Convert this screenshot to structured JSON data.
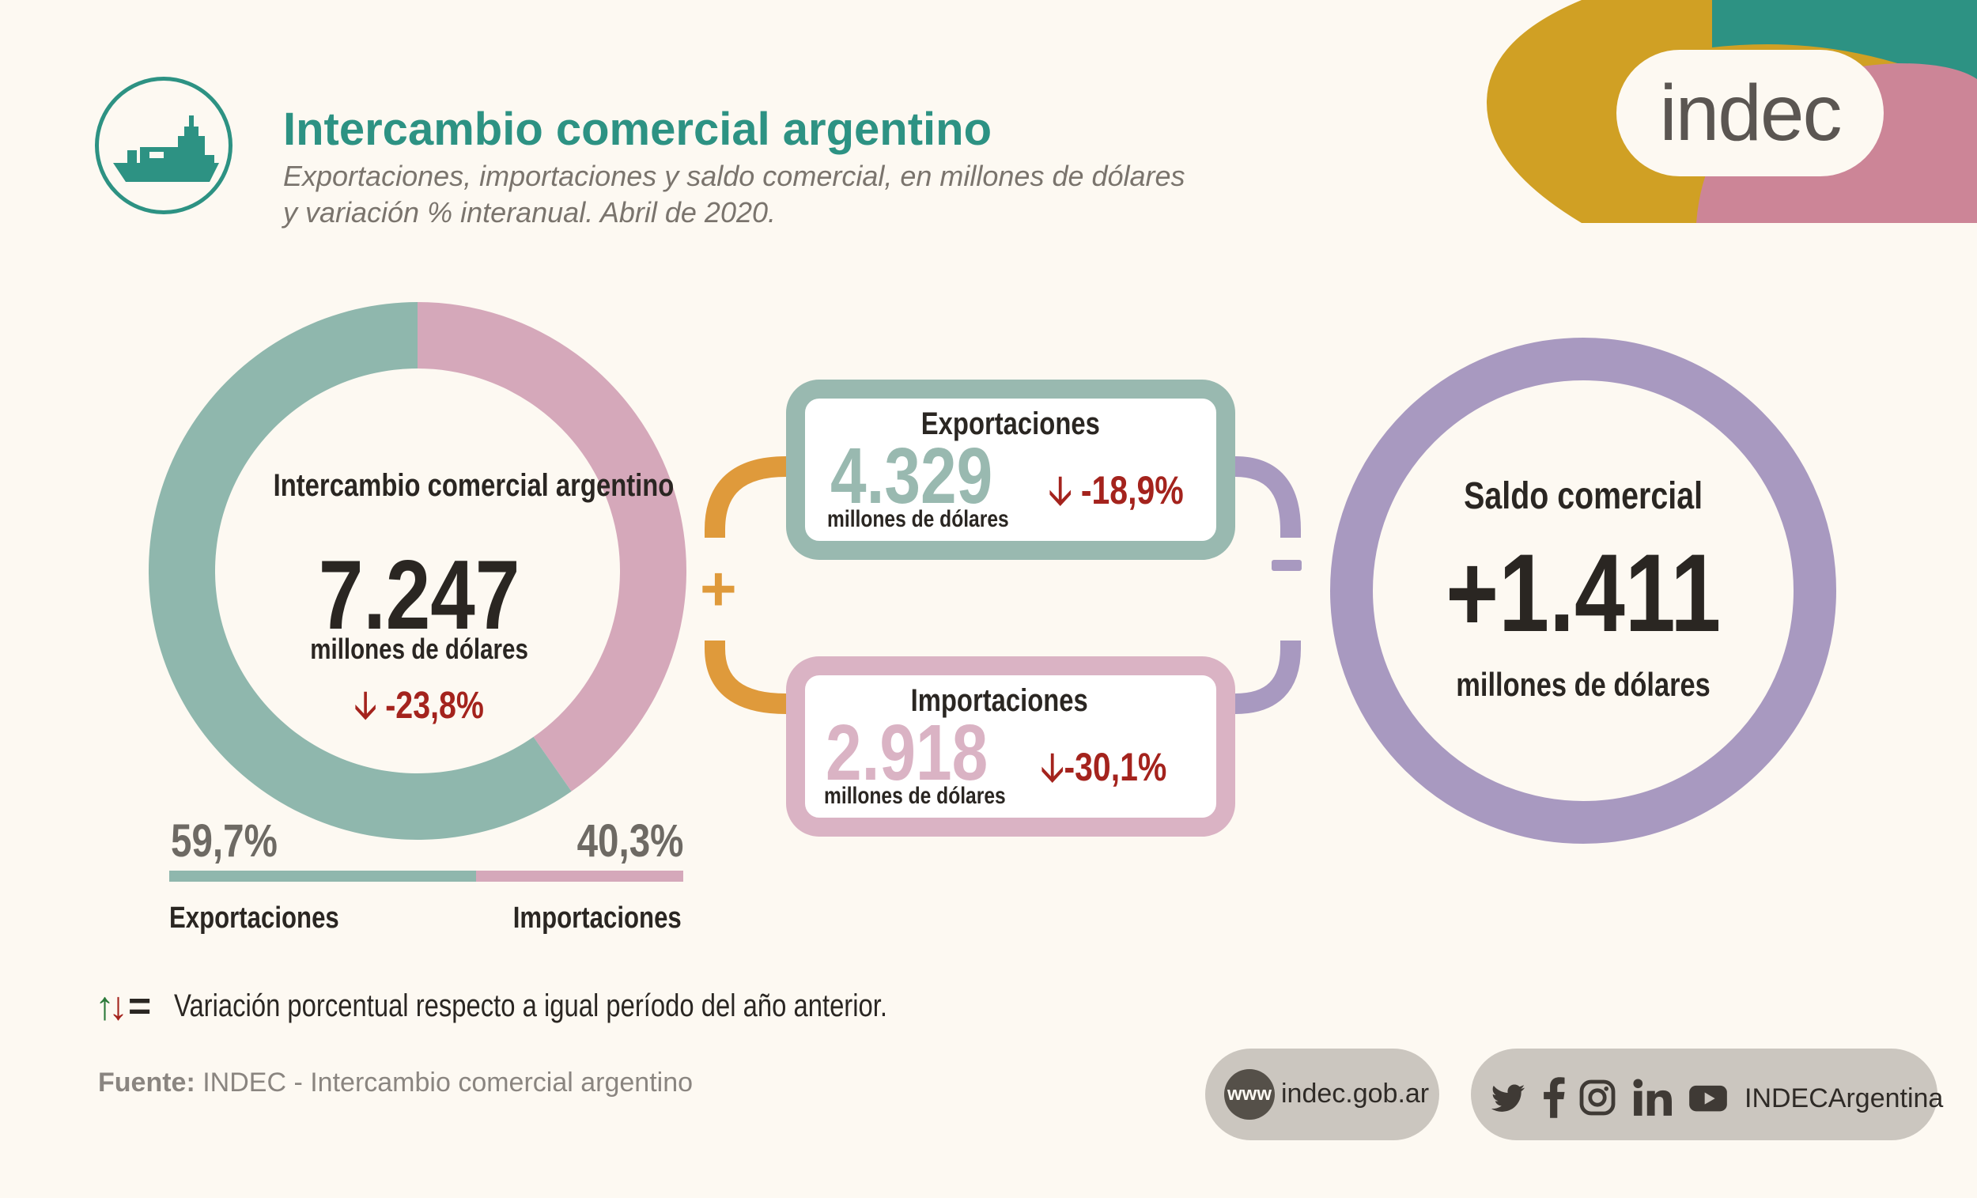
{
  "header": {
    "title": "Intercambio comercial argentino",
    "subtitle_line1": "Exportaciones, importaciones y saldo comercial, en millones de dólares",
    "subtitle_line2": "y variación % interanual. Abril de 2020.",
    "logo_text": "indec"
  },
  "chart_data": {
    "type": "pie",
    "categories": [
      "Exportaciones",
      "Importaciones"
    ],
    "values": [
      59.7,
      40.3
    ],
    "value_labels": [
      "59,7%",
      "40,3%"
    ],
    "colors": [
      "#8fb7ad",
      "#d5a8ba"
    ],
    "center_label": "Intercambio comercial argentino",
    "center_value": "7.247",
    "center_unit": "millones de dólares",
    "center_variation": "-23,8%"
  },
  "exports_box": {
    "title": "Exportaciones",
    "value": "4.329",
    "unit": "millones de dólares",
    "variation": "-18,9%"
  },
  "imports_box": {
    "title": "Importaciones",
    "value": "2.918",
    "unit": "millones de dólares",
    "variation": "-30,1%"
  },
  "operators": {
    "plus": "+",
    "minus": "-"
  },
  "saldo": {
    "title": "Saldo comercial",
    "value": "+1.411",
    "unit": "millones de dólares"
  },
  "footer": {
    "legend_text": "Variación porcentual respecto a igual período del año anterior.",
    "source_label": "Fuente:",
    "source_text": "INDEC - Intercambio comercial argentino",
    "www_badge": "www",
    "website": "indec.gob.ar",
    "social_handle": "INDECArgentina",
    "social_icons": [
      "twitter-icon",
      "facebook-icon",
      "instagram-icon",
      "linkedin-icon",
      "youtube-icon"
    ]
  },
  "colors": {
    "teal": "#2d9283",
    "export_green": "#8fb7ad",
    "import_pink": "#d5a8ba",
    "saldo_purple": "#a899c0",
    "connector_orange": "#df9a3b",
    "down_red": "#a4231d",
    "up_green": "#2b7a3a",
    "logo_gold": "#d0a024",
    "logo_rose": "#cc8597"
  }
}
